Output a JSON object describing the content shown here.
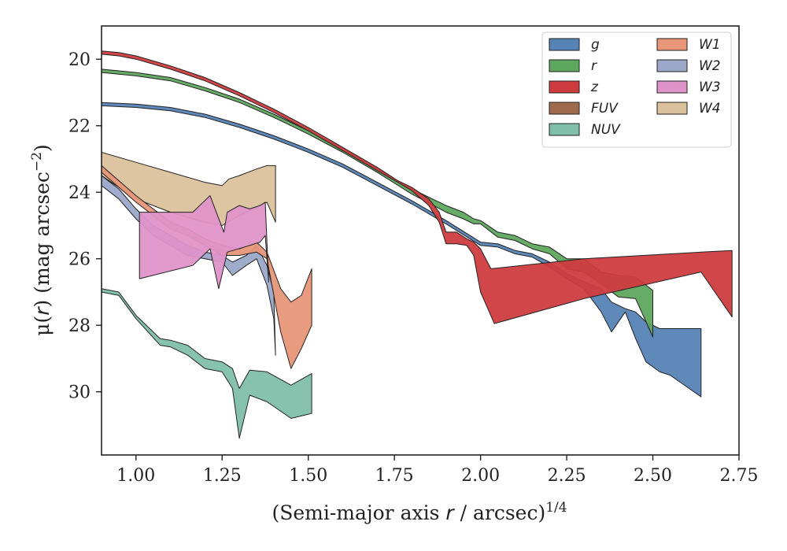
{
  "chart_data": {
    "type": "area",
    "xlabel_main": "(Semi-major axis ",
    "xlabel_var": "r",
    "xlabel_tail": " / arcsec)",
    "xlabel_exp": "1/4",
    "ylabel_main": "μ(",
    "ylabel_var": "r",
    "ylabel_tail": ") (mag arcsec",
    "ylabel_exp": "−2",
    "ylabel_close": ")",
    "xlim": [
      0.9,
      2.75
    ],
    "ylim": [
      31.9,
      19.0
    ],
    "y_inverted": true,
    "grid": false,
    "legend_position": "top-right",
    "x_ticks": [
      1.0,
      1.25,
      1.5,
      1.75,
      2.0,
      2.25,
      2.5,
      2.75
    ],
    "x_tick_labels": [
      "1.00",
      "1.25",
      "1.50",
      "1.75",
      "2.00",
      "2.25",
      "2.50",
      "2.75"
    ],
    "y_ticks": [
      20,
      22,
      24,
      26,
      28,
      30
    ],
    "y_tick_labels": [
      "20",
      "22",
      "24",
      "26",
      "28",
      "30"
    ],
    "series": [
      {
        "name": "W4",
        "color": "#dcc29c",
        "upper": [
          [
            0.9,
            22.8
          ],
          [
            1.0,
            23.1
          ],
          [
            1.1,
            23.4
          ],
          [
            1.2,
            23.7
          ],
          [
            1.25,
            23.8
          ],
          [
            1.27,
            23.6
          ],
          [
            1.3,
            23.5
          ],
          [
            1.35,
            23.3
          ],
          [
            1.38,
            23.2
          ],
          [
            1.405,
            23.2
          ]
        ],
        "lower": [
          [
            0.9,
            23.5
          ],
          [
            1.0,
            24.2
          ],
          [
            1.1,
            24.6
          ],
          [
            1.2,
            24.9
          ],
          [
            1.25,
            25.0
          ],
          [
            1.3,
            24.7
          ],
          [
            1.36,
            24.4
          ],
          [
            1.38,
            24.3
          ],
          [
            1.405,
            24.9
          ]
        ]
      },
      {
        "name": "W2",
        "color": "#9ba8c8",
        "upper": [
          [
            0.9,
            23.5
          ],
          [
            0.95,
            23.9
          ],
          [
            1.0,
            24.5
          ],
          [
            1.05,
            25.0
          ],
          [
            1.1,
            25.3
          ],
          [
            1.15,
            25.6
          ],
          [
            1.2,
            25.8
          ],
          [
            1.25,
            25.9
          ],
          [
            1.28,
            26.1
          ],
          [
            1.32,
            25.9
          ],
          [
            1.35,
            25.6
          ],
          [
            1.38,
            26.2
          ],
          [
            1.4,
            27.0
          ],
          [
            1.405,
            28.9
          ]
        ],
        "lower": [
          [
            0.9,
            23.8
          ],
          [
            0.95,
            24.2
          ],
          [
            1.0,
            24.8
          ],
          [
            1.05,
            25.3
          ],
          [
            1.1,
            25.6
          ],
          [
            1.15,
            25.9
          ],
          [
            1.2,
            26.0
          ],
          [
            1.25,
            26.1
          ],
          [
            1.28,
            26.5
          ],
          [
            1.32,
            26.2
          ],
          [
            1.35,
            26.0
          ],
          [
            1.38,
            26.8
          ],
          [
            1.4,
            27.8
          ],
          [
            1.405,
            28.9
          ]
        ]
      },
      {
        "name": "W1",
        "color": "#e89678",
        "upper": [
          [
            0.9,
            23.2
          ],
          [
            1.0,
            24.1
          ],
          [
            1.1,
            24.9
          ],
          [
            1.15,
            25.1
          ],
          [
            1.2,
            25.4
          ],
          [
            1.25,
            25.6
          ],
          [
            1.3,
            25.7
          ],
          [
            1.35,
            25.5
          ],
          [
            1.38,
            25.8
          ],
          [
            1.42,
            26.9
          ],
          [
            1.45,
            27.3
          ],
          [
            1.48,
            27.1
          ],
          [
            1.51,
            26.3
          ]
        ],
        "lower": [
          [
            0.9,
            23.4
          ],
          [
            1.0,
            24.3
          ],
          [
            1.1,
            25.1
          ],
          [
            1.15,
            25.3
          ],
          [
            1.2,
            25.6
          ],
          [
            1.25,
            25.9
          ],
          [
            1.3,
            25.9
          ],
          [
            1.35,
            25.8
          ],
          [
            1.38,
            26.0
          ],
          [
            1.42,
            28.2
          ],
          [
            1.45,
            29.3
          ],
          [
            1.48,
            28.7
          ],
          [
            1.51,
            28.0
          ]
        ]
      },
      {
        "name": "W3",
        "color": "#df94c9",
        "upper": [
          [
            1.01,
            24.6
          ],
          [
            1.1,
            24.6
          ],
          [
            1.165,
            24.6
          ],
          [
            1.215,
            24.1
          ],
          [
            1.255,
            25.2
          ],
          [
            1.265,
            24.6
          ],
          [
            1.3,
            24.4
          ],
          [
            1.33,
            24.5
          ],
          [
            1.36,
            24.4
          ],
          [
            1.375,
            24.3
          ],
          [
            1.385,
            26.7
          ]
        ],
        "lower": [
          [
            1.01,
            26.6
          ],
          [
            1.165,
            26.2
          ],
          [
            1.215,
            25.7
          ],
          [
            1.24,
            26.9
          ],
          [
            1.265,
            25.8
          ],
          [
            1.33,
            25.6
          ],
          [
            1.36,
            25.5
          ],
          [
            1.375,
            25.3
          ],
          [
            1.385,
            26.7
          ]
        ]
      },
      {
        "name": "NUV",
        "color": "#80bfaa",
        "upper": [
          [
            0.9,
            26.9
          ],
          [
            0.95,
            27.0
          ],
          [
            1.0,
            27.7
          ],
          [
            1.07,
            28.4
          ],
          [
            1.1,
            28.45
          ],
          [
            1.15,
            28.6
          ],
          [
            1.2,
            29.0
          ],
          [
            1.25,
            29.1
          ],
          [
            1.28,
            29.3
          ],
          [
            1.3,
            29.9
          ],
          [
            1.33,
            29.35
          ],
          [
            1.38,
            29.4
          ],
          [
            1.45,
            29.8
          ],
          [
            1.51,
            29.45
          ]
        ],
        "lower": [
          [
            0.9,
            27.0
          ],
          [
            0.95,
            27.1
          ],
          [
            1.0,
            27.8
          ],
          [
            1.07,
            28.6
          ],
          [
            1.1,
            28.65
          ],
          [
            1.15,
            28.9
          ],
          [
            1.2,
            29.3
          ],
          [
            1.25,
            29.4
          ],
          [
            1.28,
            29.9
          ],
          [
            1.3,
            31.4
          ],
          [
            1.33,
            30.1
          ],
          [
            1.38,
            30.3
          ],
          [
            1.45,
            30.8
          ],
          [
            1.51,
            30.65
          ]
        ]
      },
      {
        "name": "g",
        "color": "#5583b5",
        "upper": [
          [
            0.9,
            21.3
          ],
          [
            1.0,
            21.35
          ],
          [
            1.1,
            21.45
          ],
          [
            1.2,
            21.65
          ],
          [
            1.3,
            21.95
          ],
          [
            1.4,
            22.3
          ],
          [
            1.5,
            22.7
          ],
          [
            1.6,
            23.15
          ],
          [
            1.7,
            23.7
          ],
          [
            1.8,
            24.25
          ],
          [
            1.9,
            24.85
          ],
          [
            2.0,
            25.5
          ],
          [
            2.05,
            25.55
          ],
          [
            2.1,
            25.75
          ],
          [
            2.15,
            25.85
          ],
          [
            2.2,
            26.1
          ],
          [
            2.25,
            26.45
          ],
          [
            2.3,
            26.7
          ],
          [
            2.35,
            26.9
          ],
          [
            2.38,
            27.3
          ],
          [
            2.42,
            27.5
          ],
          [
            2.45,
            27.6
          ],
          [
            2.48,
            27.9
          ],
          [
            2.52,
            28.1
          ],
          [
            2.55,
            28.1
          ],
          [
            2.64,
            28.1
          ]
        ],
        "lower": [
          [
            0.9,
            21.4
          ],
          [
            1.0,
            21.45
          ],
          [
            1.1,
            21.55
          ],
          [
            1.2,
            21.75
          ],
          [
            1.3,
            22.05
          ],
          [
            1.4,
            22.4
          ],
          [
            1.5,
            22.8
          ],
          [
            1.6,
            23.25
          ],
          [
            1.7,
            23.8
          ],
          [
            1.8,
            24.35
          ],
          [
            1.9,
            24.95
          ],
          [
            2.0,
            25.6
          ],
          [
            2.05,
            25.65
          ],
          [
            2.1,
            25.85
          ],
          [
            2.15,
            25.95
          ],
          [
            2.2,
            26.25
          ],
          [
            2.25,
            26.6
          ],
          [
            2.3,
            26.9
          ],
          [
            2.35,
            27.6
          ],
          [
            2.38,
            28.2
          ],
          [
            2.42,
            27.6
          ],
          [
            2.45,
            28.4
          ],
          [
            2.48,
            29.1
          ],
          [
            2.52,
            29.4
          ],
          [
            2.55,
            29.5
          ],
          [
            2.64,
            30.15
          ]
        ]
      },
      {
        "name": "r",
        "color": "#5ea75e",
        "upper": [
          [
            0.9,
            20.3
          ],
          [
            1.0,
            20.4
          ],
          [
            1.1,
            20.55
          ],
          [
            1.2,
            20.85
          ],
          [
            1.3,
            21.2
          ],
          [
            1.4,
            21.65
          ],
          [
            1.5,
            22.15
          ],
          [
            1.6,
            22.7
          ],
          [
            1.7,
            23.3
          ],
          [
            1.8,
            23.9
          ],
          [
            1.9,
            24.4
          ],
          [
            1.95,
            24.6
          ],
          [
            1.98,
            24.8
          ],
          [
            2.0,
            24.85
          ],
          [
            2.05,
            25.2
          ],
          [
            2.1,
            25.3
          ],
          [
            2.15,
            25.55
          ],
          [
            2.2,
            25.65
          ],
          [
            2.25,
            26.0
          ],
          [
            2.3,
            26.0
          ],
          [
            2.35,
            26.4
          ],
          [
            2.4,
            26.5
          ],
          [
            2.45,
            26.55
          ],
          [
            2.5,
            26.95
          ]
        ],
        "lower": [
          [
            0.9,
            20.4
          ],
          [
            1.0,
            20.5
          ],
          [
            1.1,
            20.65
          ],
          [
            1.2,
            20.95
          ],
          [
            1.3,
            21.3
          ],
          [
            1.4,
            21.75
          ],
          [
            1.5,
            22.25
          ],
          [
            1.6,
            22.8
          ],
          [
            1.7,
            23.4
          ],
          [
            1.8,
            24.05
          ],
          [
            1.9,
            24.6
          ],
          [
            1.95,
            24.8
          ],
          [
            1.98,
            24.95
          ],
          [
            2.0,
            24.95
          ],
          [
            2.05,
            25.35
          ],
          [
            2.1,
            25.45
          ],
          [
            2.15,
            25.7
          ],
          [
            2.2,
            25.85
          ],
          [
            2.25,
            26.3
          ],
          [
            2.3,
            26.4
          ],
          [
            2.35,
            26.75
          ],
          [
            2.4,
            27.15
          ],
          [
            2.45,
            27.2
          ],
          [
            2.5,
            28.35
          ]
        ]
      },
      {
        "name": "z",
        "color": "#cf3c3f",
        "upper": [
          [
            0.9,
            19.75
          ],
          [
            0.95,
            19.8
          ],
          [
            1.0,
            19.9
          ],
          [
            1.1,
            20.2
          ],
          [
            1.2,
            20.55
          ],
          [
            1.3,
            21.0
          ],
          [
            1.4,
            21.5
          ],
          [
            1.5,
            22.05
          ],
          [
            1.6,
            22.65
          ],
          [
            1.7,
            23.25
          ],
          [
            1.76,
            23.65
          ],
          [
            1.8,
            23.85
          ],
          [
            1.85,
            24.2
          ],
          [
            1.88,
            24.6
          ],
          [
            1.9,
            25.2
          ],
          [
            1.93,
            25.2
          ],
          [
            1.96,
            25.4
          ],
          [
            1.98,
            25.5
          ],
          [
            2.0,
            25.7
          ],
          [
            2.03,
            26.3
          ],
          [
            2.3,
            26.0
          ],
          [
            2.64,
            25.8
          ],
          [
            2.73,
            25.75
          ]
        ],
        "lower": [
          [
            0.9,
            19.85
          ],
          [
            0.95,
            19.9
          ],
          [
            1.0,
            20.0
          ],
          [
            1.1,
            20.3
          ],
          [
            1.2,
            20.65
          ],
          [
            1.3,
            21.1
          ],
          [
            1.4,
            21.6
          ],
          [
            1.5,
            22.15
          ],
          [
            1.6,
            22.75
          ],
          [
            1.7,
            23.35
          ],
          [
            1.76,
            23.7
          ],
          [
            1.8,
            23.95
          ],
          [
            1.85,
            24.4
          ],
          [
            1.88,
            24.9
          ],
          [
            1.9,
            25.55
          ],
          [
            1.93,
            25.55
          ],
          [
            1.96,
            25.6
          ],
          [
            1.98,
            25.9
          ],
          [
            2.0,
            27.0
          ],
          [
            2.04,
            27.95
          ],
          [
            2.3,
            27.2
          ],
          [
            2.64,
            26.4
          ],
          [
            2.73,
            27.75
          ]
        ]
      }
    ],
    "legend": [
      {
        "name": "g",
        "color": "#5583b5"
      },
      {
        "name": "r",
        "color": "#5ea75e"
      },
      {
        "name": "z",
        "color": "#cf3c3f"
      },
      {
        "name": "FUV",
        "color": "#a06a4c"
      },
      {
        "name": "NUV",
        "color": "#80bfaa"
      },
      {
        "name": "W1",
        "color": "#e89678"
      },
      {
        "name": "W2",
        "color": "#9ba8c8"
      },
      {
        "name": "W3",
        "color": "#df94c9"
      },
      {
        "name": "W4",
        "color": "#dcc29c"
      }
    ]
  }
}
